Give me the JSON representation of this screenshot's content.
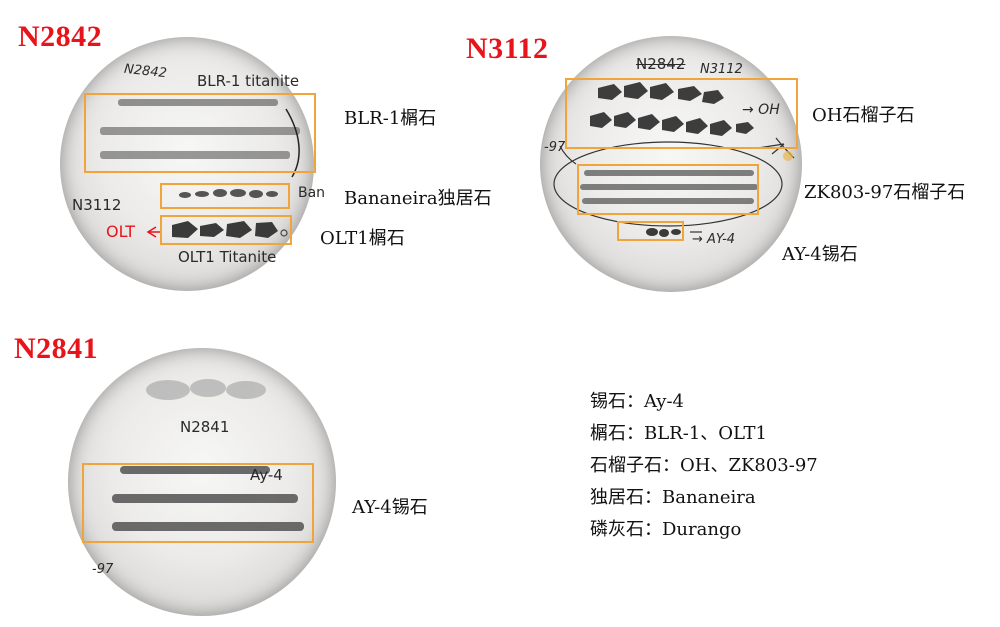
{
  "panels": {
    "n2842": {
      "title": "N2842",
      "hand_sample": "N2842",
      "hand_blr": "BLR-1 titanite",
      "hand_n3112": "N3112",
      "hand_olt_red": "OLT",
      "hand_ban": "Ban",
      "hand_olt_titanite": "OLT1 Titanite",
      "label_blr": "BLR-1榍石",
      "label_ban": "Bananeira独居石",
      "label_olt": "OLT1榍石"
    },
    "n3112": {
      "title": "N3112",
      "hand_n2842": "N2842",
      "hand_n3112": "N3112",
      "hand_oh": "→ OH",
      "hand_ay4": "→ AY-4",
      "hand_97": "-97",
      "label_oh": "OH石榴子石",
      "label_zk": "ZK803-97石榴子石",
      "label_ay4": "AY-4锡石"
    },
    "n2841": {
      "title": "N2841",
      "hand_sample": "N2841",
      "hand_ay4": "Ay-4",
      "hand_97": "-97",
      "label_ay4": "AY-4锡石"
    }
  },
  "legend": [
    "锡石：Ay-4",
    "榍石：BLR-1、OLT1",
    "石榴子石：OH、ZK803-97",
    "独居石：Bananeira",
    "磷灰石：Durango"
  ],
  "colors": {
    "title_red": "#e8141b",
    "box_orange": "#f0a53b",
    "handwriting_red": "#e8141b"
  }
}
